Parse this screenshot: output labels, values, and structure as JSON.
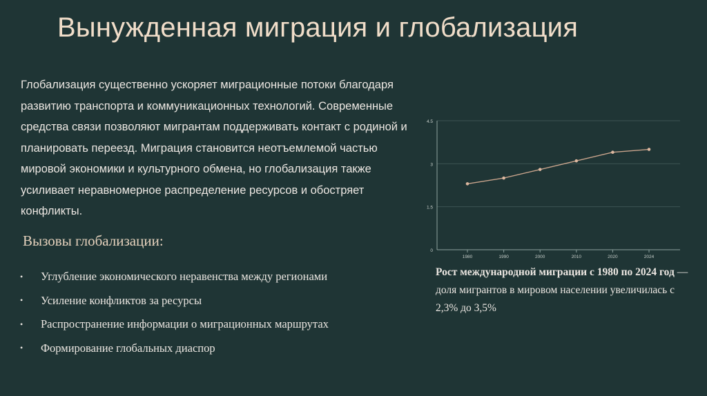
{
  "slide": {
    "title": "Вынужденная миграция и глобализация",
    "paragraph": "Глобализация существенно ускоряет миграционные потоки благодаря развитию транспорта и коммуникационных технологий. Современные средства связи позволяют мигрантам поддерживать контакт с родиной и планировать переезд. Миграция становится неотъемлемой частью мировой экономики и культурного обмена, но глобализация также усиливает неравномерное распределение ресурсов и обостряет конфликты.",
    "challenges_heading": "Вызовы глобализации:",
    "bullet_char": "•",
    "bullets": [
      "Углубление экономического неравенства между регионами",
      "Усиление конфликтов за ресурсы",
      "Распространение информации о миграционных маршрутах",
      "Формирование глобальных диаспор"
    ],
    "caption_bold": "Рост международной миграции с 1980 по 2024 год",
    "caption_rest": " — доля мигрантов в мировом населении увеличилась с 2,3% до 3,5%"
  },
  "chart_data": {
    "type": "line",
    "x": [
      "1980",
      "1990",
      "2000",
      "2010",
      "2020",
      "2024"
    ],
    "values": [
      2.3,
      2.5,
      2.8,
      3.1,
      3.4,
      3.5
    ],
    "yticks": [
      "0",
      "1.5",
      "3",
      "4.5"
    ],
    "ylim": [
      0,
      4.5
    ],
    "grid": true,
    "colors": {
      "line": "#c9a48c",
      "marker": "#ddb8a0",
      "grid": "#3c5453",
      "axis": "#8fa3a0",
      "tick_text": "#c8cfcb"
    }
  }
}
